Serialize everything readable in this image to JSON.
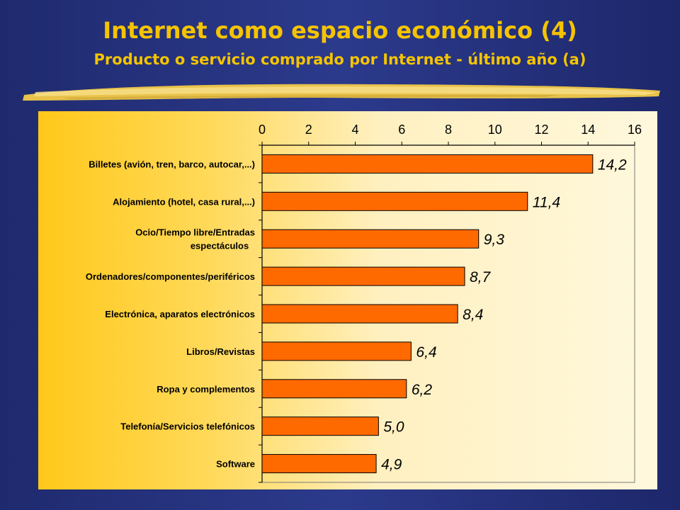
{
  "slide": {
    "title": "Internet como espacio económico (4)",
    "subtitle": "Producto o servicio comprado por Internet - último año (a)"
  },
  "colors": {
    "background": "#2c3a8c",
    "title": "#f5c400",
    "bar_fill": "#ff6a00",
    "bar_stroke": "#000000"
  },
  "chart_data": {
    "type": "bar",
    "orientation": "horizontal",
    "categories": [
      "Billetes (avión, tren, barco, autocar,...)",
      "Alojamiento (hotel, casa rural,...)",
      "Ocio/Tiempo libre/Entradas espectáculos",
      "Ordenadores/componentes/periféricos",
      "Electrónica, aparatos electrónicos",
      "Libros/Revistas",
      "Ropa y complementos",
      "Telefonía/Servicios telefónicos",
      "Software"
    ],
    "category_lines": [
      [
        "Billetes (avión, tren, barco, autocar,...)"
      ],
      [
        "Alojamiento (hotel, casa rural,...)"
      ],
      [
        "Ocio/Tiempo libre/Entradas",
        "espectáculos"
      ],
      [
        "Ordenadores/componentes/periféricos"
      ],
      [
        "Electrónica, aparatos electrónicos"
      ],
      [
        "Libros/Revistas"
      ],
      [
        "Ropa y complementos"
      ],
      [
        "Telefonía/Servicios telefónicos"
      ],
      [
        "Software"
      ]
    ],
    "values": [
      14.2,
      11.4,
      9.3,
      8.7,
      8.4,
      6.4,
      6.2,
      5.0,
      4.9
    ],
    "value_labels": [
      "14,2",
      "11,4",
      "9,3",
      "8,7",
      "8,4",
      "6,4",
      "6,2",
      "5,0",
      "4,9"
    ],
    "xlim": [
      0,
      16
    ],
    "x_ticks": [
      0,
      2,
      4,
      6,
      8,
      10,
      12,
      14,
      16
    ],
    "x_axis_position": "top",
    "grid": false,
    "legend": "none"
  }
}
